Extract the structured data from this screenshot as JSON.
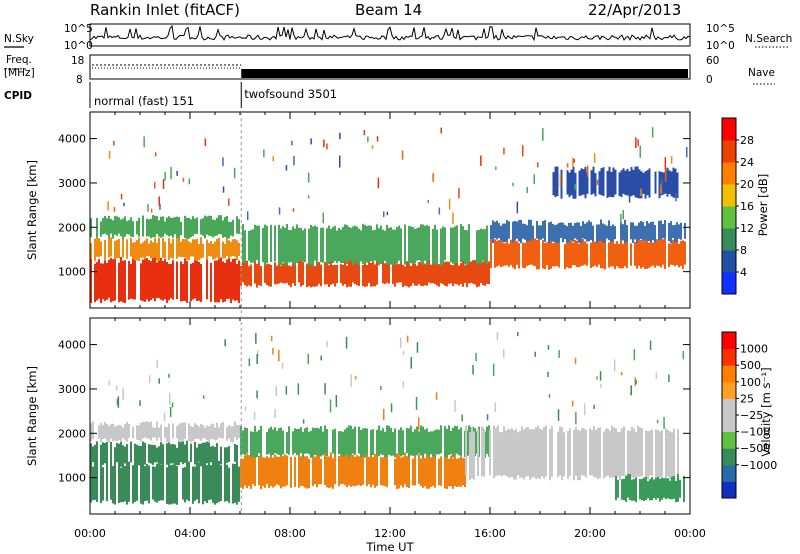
{
  "header": {
    "station": "Rankin Inlet (fitACF)",
    "beam": "Beam 14",
    "date": "22/Apr/2013"
  },
  "panels": {
    "nsky_label": "N.Sky",
    "nsky_ticks": [
      "10^5",
      "10^0"
    ],
    "nsearch_label": "N.Search",
    "freq_label": "Freq.",
    "freq_unit": "[MHz]",
    "freq_ticks": [
      "18",
      "8"
    ],
    "nave_label": "Nave",
    "nave_ticks": [
      "60",
      "0"
    ],
    "cpid_label": "CPID",
    "cpid_segments": [
      {
        "name": "normal (fast) 151",
        "start_hour": 0.0,
        "end_hour": 6.05
      },
      {
        "name": "twofsound 3501",
        "start_hour": 6.05,
        "end_hour": 24.0
      }
    ]
  },
  "chart_data": [
    {
      "type": "heatmap",
      "name": "power",
      "xlabel": "",
      "ylabel": "Slant Range [km]",
      "xlim_hours": [
        0,
        24
      ],
      "ylim": [
        180,
        4600
      ],
      "yticks": [
        1000,
        2000,
        3000,
        4000
      ],
      "colorbar_label": "Power [dB]",
      "colorbar_ticks": [
        "4",
        "8",
        "12",
        "16",
        "20",
        "24",
        "28"
      ],
      "colorbar_colors": [
        "#1030ff",
        "#2050a8",
        "#3a8a5a",
        "#60c040",
        "#f0c000",
        "#ff8000",
        "#f04000",
        "#ff0000"
      ],
      "bands": [
        {
          "from": 0,
          "to": 6,
          "min": 350,
          "max": 1250,
          "color": "#e83010"
        },
        {
          "from": 0,
          "to": 6,
          "min": 1300,
          "max": 1700,
          "color": "#f08c10"
        },
        {
          "from": 0,
          "to": 6,
          "min": 1800,
          "max": 2200,
          "color": "#48a858"
        },
        {
          "from": 6,
          "to": 16,
          "min": 700,
          "max": 1200,
          "color": "#e64a10"
        },
        {
          "from": 6,
          "to": 16,
          "min": 1200,
          "max": 2000,
          "color": "#4aa85c"
        },
        {
          "from": 16,
          "to": 23.8,
          "min": 1100,
          "max": 1700,
          "color": "#f06010"
        },
        {
          "from": 16,
          "to": 23.8,
          "min": 1700,
          "max": 2100,
          "color": "#3c70b0"
        },
        {
          "from": 18.5,
          "to": 23.5,
          "min": 2700,
          "max": 3300,
          "color": "#2a4ea8"
        }
      ]
    },
    {
      "type": "heatmap",
      "name": "velocity",
      "xlabel": "Time UT",
      "ylabel": "Slant Range [km]",
      "xlim_hours": [
        0,
        24
      ],
      "ylim": [
        180,
        4600
      ],
      "yticks": [
        1000,
        2000,
        3000,
        4000
      ],
      "xticks": [
        "00:00",
        "04:00",
        "08:00",
        "12:00",
        "16:00",
        "20:00",
        "00:00"
      ],
      "colorbar_label": "Velocity [m s⁻¹]",
      "colorbar_ticks": [
        "1000",
        "500",
        "100",
        "25",
        "−25",
        "−100",
        "−500",
        "−1000"
      ],
      "colorbar_colors": [
        "#1030c0",
        "#2a6aa8",
        "#3a8a5a",
        "#60c040",
        "#c8c8c8",
        "#c8c8c8",
        "#ffa020",
        "#ff8000",
        "#ff3000",
        "#ff0000"
      ],
      "bands": [
        {
          "from": 0,
          "to": 6,
          "min": 450,
          "max": 1300,
          "color": "#3a8a5a"
        },
        {
          "from": 0,
          "to": 6,
          "min": 1300,
          "max": 1750,
          "color": "#3a8a5a"
        },
        {
          "from": 0,
          "to": 6,
          "min": 1850,
          "max": 2200,
          "color": "#c8c8c8"
        },
        {
          "from": 6,
          "to": 15,
          "min": 800,
          "max": 1500,
          "color": "#f08010"
        },
        {
          "from": 6,
          "to": 16,
          "min": 1500,
          "max": 2100,
          "color": "#4aa85c"
        },
        {
          "from": 15,
          "to": 23.5,
          "min": 1000,
          "max": 2100,
          "color": "#c8c8c8"
        },
        {
          "from": 21,
          "to": 23.8,
          "min": 500,
          "max": 1000,
          "color": "#3a9a5a"
        }
      ]
    }
  ]
}
